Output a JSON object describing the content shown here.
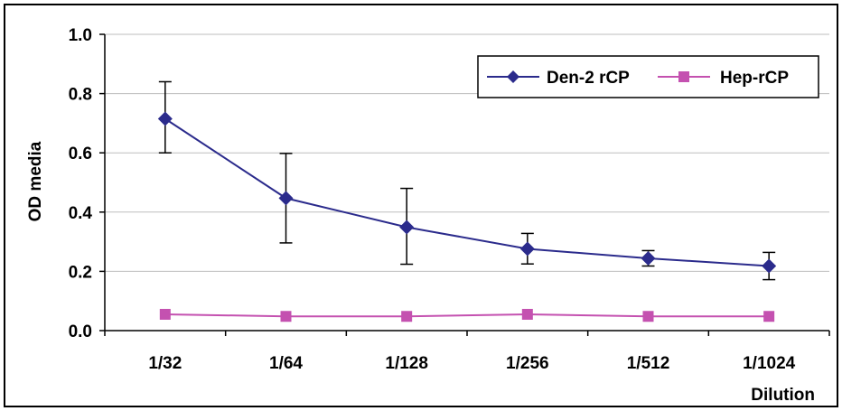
{
  "chart_data": {
    "type": "line",
    "categories": [
      "1/32",
      "1/64",
      "1/128",
      "1/256",
      "1/512",
      "1/1024"
    ],
    "series": [
      {
        "name": "Den-2 rCP",
        "values": [
          0.715,
          0.447,
          0.349,
          0.276,
          0.244,
          0.218
        ],
        "error_low": [
          0.6,
          0.296,
          0.224,
          0.225,
          0.218,
          0.172
        ],
        "error_high": [
          0.84,
          0.598,
          0.48,
          0.328,
          0.27,
          0.264
        ],
        "color": "#2b2b8c",
        "marker": "diamond"
      },
      {
        "name": "Hep-rCP",
        "values": [
          0.055,
          0.048,
          0.048,
          0.055,
          0.048,
          0.048
        ],
        "color": "#c451b0",
        "marker": "square"
      }
    ],
    "xlabel": "Dilution",
    "ylabel": "OD media",
    "ylim": [
      0.0,
      1.0
    ],
    "yticks": [
      "0.0",
      "0.2",
      "0.4",
      "0.6",
      "0.8",
      "1.0"
    ],
    "grid": true,
    "legend_position": "top-right"
  }
}
